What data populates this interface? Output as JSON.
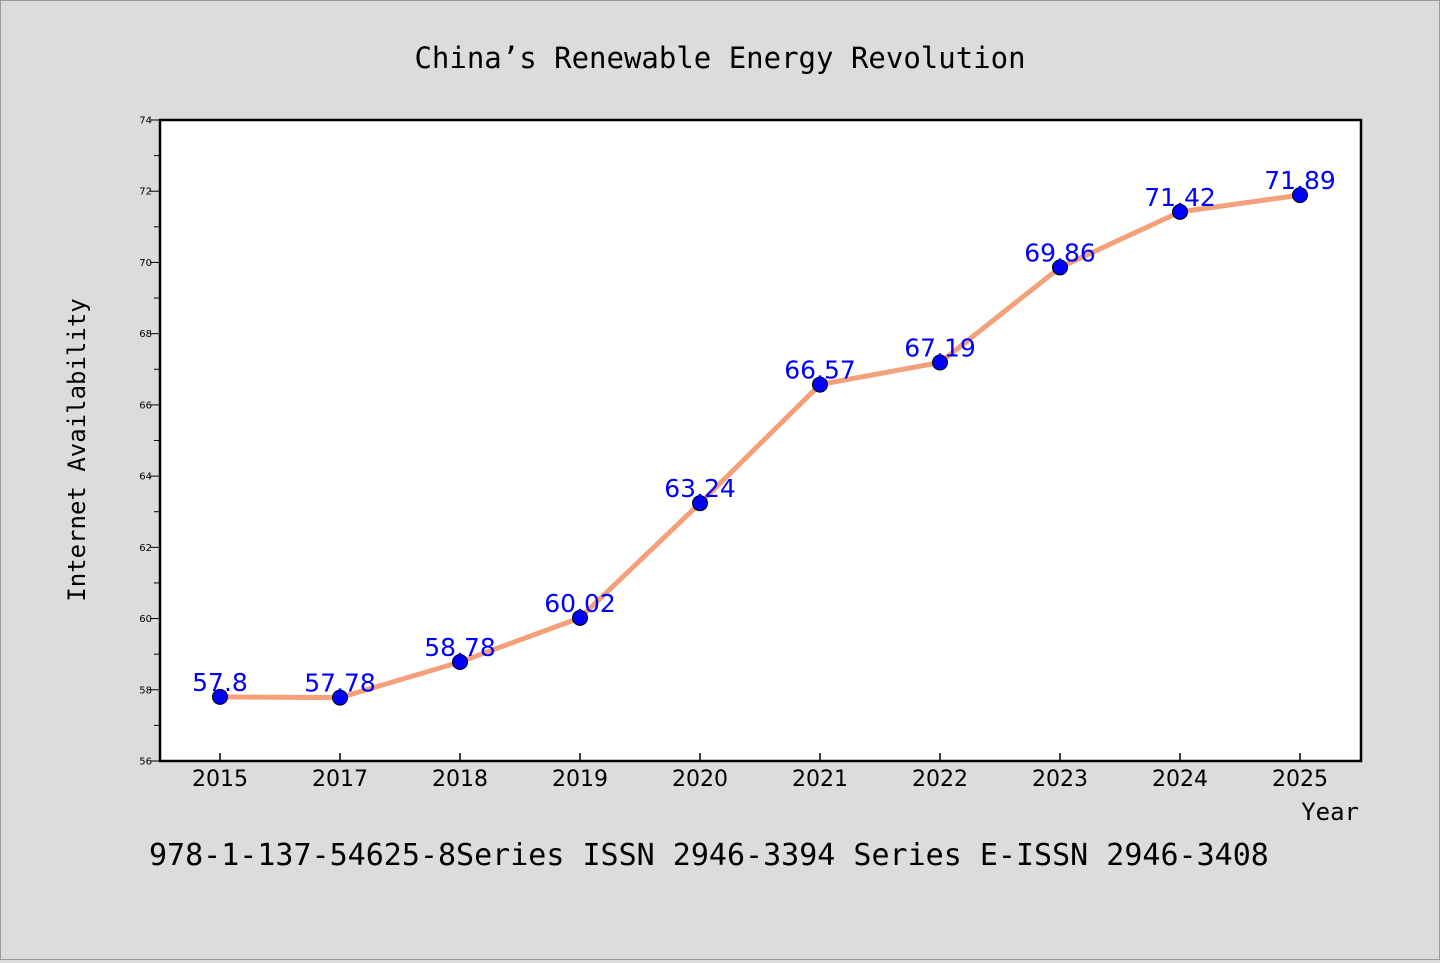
{
  "chart_data": {
    "type": "line",
    "title": "China’s Renewable Energy Revolution",
    "xlabel": "Year",
    "ylabel": "Internet Availability",
    "categories": [
      "2015",
      "2017",
      "2018",
      "2019",
      "2020",
      "2021",
      "2022",
      "2023",
      "2024",
      "2025"
    ],
    "series": [
      {
        "values": [
          57.8,
          57.78,
          58.78,
          60.02,
          63.24,
          66.57,
          67.19,
          69.86,
          71.42,
          71.89
        ],
        "line_color": "#f4a07a",
        "marker_color": "#0000ff"
      }
    ],
    "data_labels": [
      "57.8",
      "57.78",
      "58.78",
      "60.02",
      "63.24",
      "66.57",
      "67.19",
      "69.86",
      "71.42",
      "71.89"
    ],
    "ylim": [
      56,
      74
    ],
    "yticks": [
      "56",
      "58",
      "60",
      "62",
      "64",
      "66",
      "68",
      "70",
      "72",
      "74"
    ],
    "grid": false,
    "legend": "none"
  },
  "footer": {
    "text": "978-1-137-54625-8Series ISSN 2946-3394 Series E-ISSN 2946-3408"
  },
  "colors": {
    "background": "#dcdcdc",
    "plot_background": "#ffffff",
    "line": "#f4a07a",
    "marker": "#0000ff",
    "data_label": "#0000ff"
  }
}
